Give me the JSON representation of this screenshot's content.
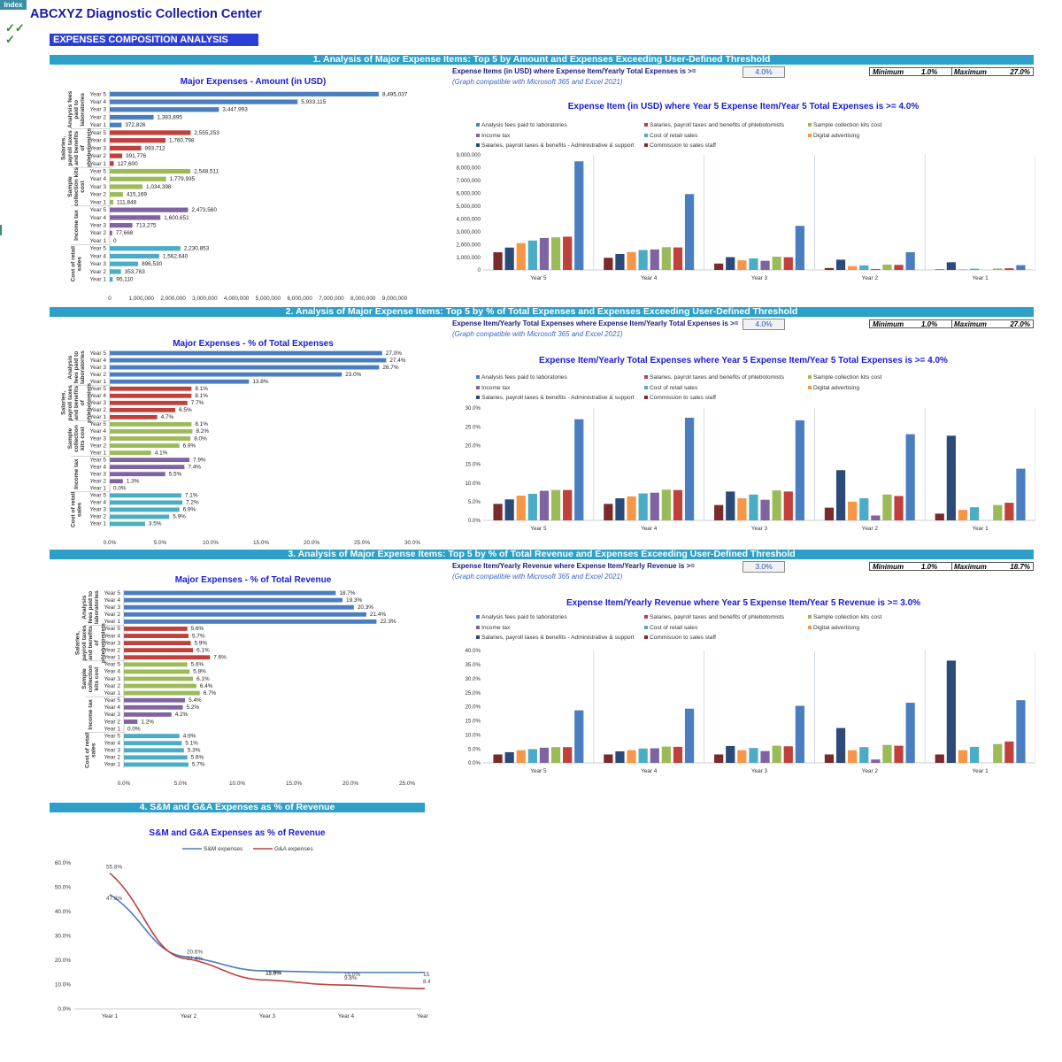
{
  "header": {
    "index_label": "Index",
    "company": "ABCXYZ Diagnostic Collection Center",
    "checks": [
      "✓✓",
      "✓"
    ],
    "analysis_title": "EXPENSES COMPOSITION ANALYSIS"
  },
  "years_desc": [
    "Year 5",
    "Year 4",
    "Year 3",
    "Year 2",
    "Year 1"
  ],
  "years_asc": [
    "Year 1",
    "Year 2",
    "Year 3",
    "Year 4",
    "Year 5"
  ],
  "colors": {
    "analysis": "#4a7ebf",
    "salaries_ph": "#c0403c",
    "kits": "#9bbb59",
    "income_tax": "#8064a2",
    "retail": "#4bacc6",
    "salaries_admin": "#2c4a78",
    "commission": "#7a2a2a",
    "digital": "#f79646",
    "section_bar": "#2da0c9"
  },
  "sections": [
    {
      "bar_title": "1. Analysis of Major Expense Items: Top 5 by Amount and Expenses Exceeding User-Defined Threshold",
      "threshold_label": "Expense Items (in USD) where Expense Item/Yearly Total Expenses is >=",
      "threshold_value": "4.0%",
      "compat": "(Graph compatible with Microsoft 365 and Excel 2021)",
      "min_label": "Minimum",
      "min_value": "1.0%",
      "max_label": "Maximum",
      "max_value": "27.0%",
      "hbar": {
        "title": "Major Expenses - Amount (in USD)",
        "xmax": 9000000,
        "xticks": [
          "0",
          "1,000,000",
          "2,000,000",
          "3,000,000",
          "4,000,000",
          "5,000,000",
          "6,000,000",
          "7,000,000",
          "8,000,000",
          "9,000,000"
        ],
        "groups": [
          {
            "name": "Analysis fees paid to laboratories",
            "color": "#4a7ebf",
            "values": [
              8495037,
              5933115,
              3447993,
              1383895,
              372826
            ],
            "labels": [
              "8,495,037",
              "5,933,115",
              "3,447,993",
              "1,383,895",
              "372,826"
            ]
          },
          {
            "name": "Salaries, payroll taxes and benefits of phlebotomists",
            "color": "#c0403c",
            "values": [
              2555253,
              1760798,
              993712,
              391776,
              127600
            ],
            "labels": [
              "2,555,253",
              "1,760,798",
              "993,712",
              "391,776",
              "127,600"
            ]
          },
          {
            "name": "Sample collection kits cost",
            "color": "#9bbb59",
            "values": [
              2548511,
              1779935,
              1034398,
              415169,
              111848
            ],
            "labels": [
              "2,548,511",
              "1,779,935",
              "1,034,398",
              "415,169",
              "111,848"
            ]
          },
          {
            "name": "Income tax",
            "color": "#8064a2",
            "values": [
              2473560,
              1600651,
              713275,
              77668,
              0
            ],
            "labels": [
              "2,473,560",
              "1,600,651",
              "713,275",
              "77,668",
              "0"
            ]
          },
          {
            "name": "Cost of retail sales",
            "color": "#4bacc6",
            "values": [
              2230853,
              1562640,
              896530,
              353763,
              95110
            ],
            "labels": [
              "2,230,853",
              "1,562,640",
              "896,530",
              "353,763",
              "95,110"
            ]
          }
        ],
        "group_labels": [
          [
            "Analysis fees",
            "paid to",
            "laboratories"
          ],
          [
            "Salaries,",
            "payroll taxes",
            "and benefits",
            "of",
            "phlebotomists"
          ],
          [
            "Sample",
            "collection kits",
            "cost"
          ],
          [
            "Income tax"
          ],
          [
            "Cost of retail",
            "sales"
          ]
        ]
      },
      "vbar": {
        "title": "Expense Item (in USD) where Year 5 Expense Item/Year 5 Total Expenses is >= 4.0%",
        "legend": [
          [
            "Analysis fees paid to laboratories",
            "#4a7ebf"
          ],
          [
            "Salaries, payroll taxes and benefits of phlebotomists",
            "#c0403c"
          ],
          [
            "Sample collection kits cost",
            "#9bbb59"
          ],
          [
            "Income tax",
            "#8064a2"
          ],
          [
            "Cost of retail sales",
            "#4bacc6"
          ],
          [
            "Digital advertising",
            "#f79646"
          ],
          [
            "Salaries, payroll taxes & benefits - Administrative & support",
            "#2c4a78"
          ],
          [
            "Commission to sales staff",
            "#7a2a2a"
          ]
        ],
        "ymax": 9000000,
        "yticks": [
          "0",
          "1,000,000",
          "2,000,000",
          "3,000,000",
          "4,000,000",
          "5,000,000",
          "6,000,000",
          "7,000,000",
          "8,000,000",
          "9,000,000"
        ],
        "bar_colors": [
          "#7a2a2a",
          "#2c4a78",
          "#f79646",
          "#4bacc6",
          "#8064a2",
          "#9bbb59",
          "#c0403c",
          "#4a7ebf"
        ],
        "groups": [
          {
            "label": "Year 5",
            "values": [
              1380000,
              1750000,
              2100000,
              2300000,
              2500000,
              2550000,
              2600000,
              8495037
            ]
          },
          {
            "label": "Year 4",
            "values": [
              950000,
              1250000,
              1400000,
              1560000,
              1600000,
              1780000,
              1760000,
              5933115
            ]
          },
          {
            "label": "Year 3",
            "values": [
              500000,
              1000000,
              750000,
              900000,
              713275,
              1034398,
              993712,
              3447993
            ]
          },
          {
            "label": "Year 2",
            "values": [
              150000,
              800000,
              300000,
              353763,
              77668,
              415169,
              391776,
              1383895
            ]
          },
          {
            "label": "Year 1",
            "values": [
              40000,
              600000,
              50000,
              95110,
              0,
              111848,
              127600,
              372826
            ]
          }
        ]
      }
    },
    {
      "bar_title": "2. Analysis of Major Expense Items: Top 5 by % of Total Expenses and Expenses Exceeding User-Defined Threshold",
      "threshold_label": "Expense Item/Yearly Total Expenses where Expense Item/Yearly Total Expenses is >=",
      "threshold_value": "4.0%",
      "compat": "(Graph compatible with Microsoft 365 and Excel 2021)",
      "min_label": "Minimum",
      "min_value": "1.0%",
      "max_label": "Maximum",
      "max_value": "27.0%",
      "hbar": {
        "title": "Major Expenses - % of Total Expenses",
        "xmax": 30,
        "xticks": [
          "0.0%",
          "5.0%",
          "10.0%",
          "15.0%",
          "20.0%",
          "25.0%",
          "30.0%"
        ],
        "groups": [
          {
            "name": "Analysis fees paid to laboratories",
            "color": "#4a7ebf",
            "values": [
              27.0,
              27.4,
              26.7,
              23.0,
              13.8
            ],
            "labels": [
              "27.0%",
              "27.4%",
              "26.7%",
              "23.0%",
              "13.8%"
            ]
          },
          {
            "name": "Salaries, payroll taxes and benefits of phlebotomists",
            "color": "#c0403c",
            "values": [
              8.1,
              8.1,
              7.7,
              6.5,
              4.7
            ],
            "labels": [
              "8.1%",
              "8.1%",
              "7.7%",
              "6.5%",
              "4.7%"
            ]
          },
          {
            "name": "Sample collection kits cost",
            "color": "#9bbb59",
            "values": [
              8.1,
              8.2,
              8.0,
              6.9,
              4.1
            ],
            "labels": [
              "8.1%",
              "8.2%",
              "8.0%",
              "6.9%",
              "4.1%"
            ]
          },
          {
            "name": "Income tax",
            "color": "#8064a2",
            "values": [
              7.9,
              7.4,
              5.5,
              1.3,
              0.0
            ],
            "labels": [
              "7.9%",
              "7.4%",
              "5.5%",
              "1.3%",
              "0.0%"
            ]
          },
          {
            "name": "Cost of retail sales",
            "color": "#4bacc6",
            "values": [
              7.1,
              7.2,
              6.9,
              5.9,
              3.5
            ],
            "labels": [
              "7.1%",
              "7.2%",
              "6.9%",
              "5.9%",
              "3.5%"
            ]
          }
        ],
        "group_labels": [
          [
            "Analysis",
            "fees paid to",
            "laboratories"
          ],
          [
            "Salaries,",
            "payroll taxes",
            "and benefits",
            "of",
            "phlebotomists"
          ],
          [
            "Sample",
            "collection",
            "kits cost"
          ],
          [
            "Income tax"
          ],
          [
            "Cost of retail",
            "sales"
          ]
        ]
      },
      "vbar": {
        "title": "Expense Item/Yearly Total Expenses where Year 5 Expense Item/Year 5 Total Expenses is >= 4.0%",
        "legend": [
          [
            "Analysis fees paid to laboratories",
            "#4a7ebf"
          ],
          [
            "Salaries, payroll taxes and benefits of phlebotomists",
            "#c0403c"
          ],
          [
            "Sample collection kits cost",
            "#9bbb59"
          ],
          [
            "Income tax",
            "#8064a2"
          ],
          [
            "Cost of retail sales",
            "#4bacc6"
          ],
          [
            "Digital advertising",
            "#f79646"
          ],
          [
            "Salaries, payroll taxes & benefits - Administrative & support",
            "#2c4a78"
          ],
          [
            "Commission to sales staff",
            "#7a2a2a"
          ]
        ],
        "ymax": 30,
        "yticks": [
          "0.0%",
          "5.0%",
          "10.0%",
          "15.0%",
          "20.0%",
          "25.0%",
          "30.0%"
        ],
        "bar_colors": [
          "#7a2a2a",
          "#2c4a78",
          "#f79646",
          "#4bacc6",
          "#8064a2",
          "#9bbb59",
          "#c0403c",
          "#4a7ebf"
        ],
        "groups": [
          {
            "label": "Year 5",
            "values": [
              4.4,
              5.6,
              6.6,
              7.1,
              7.9,
              8.1,
              8.1,
              27.0
            ]
          },
          {
            "label": "Year 4",
            "values": [
              4.4,
              5.9,
              6.4,
              7.2,
              7.4,
              8.2,
              8.1,
              27.4
            ]
          },
          {
            "label": "Year 3",
            "values": [
              4.1,
              7.7,
              5.9,
              6.9,
              5.5,
              8.0,
              7.7,
              26.7
            ]
          },
          {
            "label": "Year 2",
            "values": [
              3.4,
              13.4,
              5.0,
              5.9,
              1.3,
              6.9,
              6.5,
              23.0
            ]
          },
          {
            "label": "Year 1",
            "values": [
              1.8,
              22.6,
              2.8,
              3.5,
              0.0,
              4.1,
              4.7,
              13.8
            ]
          }
        ]
      }
    },
    {
      "bar_title": "3. Analysis of Major Expense Items: Top 5 by % of Total Revenue and Expenses Exceeding User-Defined Threshold",
      "threshold_label": "Expense Item/Yearly Revenue where Expense Item/Yearly Revenue is >=",
      "threshold_value": "3.0%",
      "compat": "(Graph compatible with Microsoft 365 and Excel 2021)",
      "min_label": "Minimum",
      "min_value": "1.0%",
      "max_label": "Maximum",
      "max_value": "18.7%",
      "hbar": {
        "title": "Major Expenses - % of Total Revenue",
        "xmax": 25,
        "xticks": [
          "0.0%",
          "5.0%",
          "10.0%",
          "15.0%",
          "20.0%",
          "25.0%"
        ],
        "groups": [
          {
            "name": "Analysis fees paid to laboratories",
            "color": "#4a7ebf",
            "values": [
              18.7,
              19.3,
              20.3,
              21.4,
              22.3
            ],
            "labels": [
              "18.7%",
              "19.3%",
              "20.3%",
              "21.4%",
              "22.3%"
            ]
          },
          {
            "name": "Salaries, payroll taxes and benefits of phlebotomists",
            "color": "#c0403c",
            "values": [
              5.6,
              5.7,
              5.9,
              6.1,
              7.6
            ],
            "labels": [
              "5.6%",
              "5.7%",
              "5.9%",
              "6.1%",
              "7.6%"
            ]
          },
          {
            "name": "Sample collection kits cost",
            "color": "#9bbb59",
            "values": [
              5.6,
              5.8,
              6.1,
              6.4,
              6.7
            ],
            "labels": [
              "5.6%",
              "5.8%",
              "6.1%",
              "6.4%",
              "6.7%"
            ]
          },
          {
            "name": "Income tax",
            "color": "#8064a2",
            "values": [
              5.4,
              5.2,
              4.2,
              1.2,
              0.0
            ],
            "labels": [
              "5.4%",
              "5.2%",
              "4.2%",
              "1.2%",
              "0.0%"
            ]
          },
          {
            "name": "Cost of retail sales",
            "color": "#4bacc6",
            "values": [
              4.9,
              5.1,
              5.3,
              5.6,
              5.7
            ],
            "labels": [
              "4.9%",
              "5.1%",
              "5.3%",
              "5.6%",
              "5.7%"
            ]
          }
        ],
        "group_labels": [
          [
            "Analysis",
            "fees paid to",
            "laboratories"
          ],
          [
            "Salaries,",
            "payroll taxes",
            "and benefits",
            "of",
            "phlebotomists"
          ],
          [
            "Sample",
            "collection",
            "kits cost"
          ],
          [
            "Income tax"
          ],
          [
            "Cost of retail",
            "sales"
          ]
        ]
      },
      "vbar": {
        "title": "Expense Item/Yearly Revenue where Year 5 Expense Item/Year 5 Revenue is >= 3.0%",
        "legend": [
          [
            "Analysis fees paid to laboratories",
            "#4a7ebf"
          ],
          [
            "Salaries, payroll taxes and benefits of phlebotomists",
            "#c0403c"
          ],
          [
            "Sample collection kits cost",
            "#9bbb59"
          ],
          [
            "Income tax",
            "#8064a2"
          ],
          [
            "Cost of retail sales",
            "#4bacc6"
          ],
          [
            "Digital advertising",
            "#f79646"
          ],
          [
            "Salaries, payroll taxes & benefits - Administrative & support",
            "#2c4a78"
          ],
          [
            "Commission to sales staff",
            "#7a2a2a"
          ]
        ],
        "ymax": 40,
        "yticks": [
          "0.0%",
          "5.0%",
          "10.0%",
          "15.0%",
          "20.0%",
          "25.0%",
          "30.0%",
          "35.0%",
          "40.0%"
        ],
        "bar_colors": [
          "#7a2a2a",
          "#2c4a78",
          "#f79646",
          "#4bacc6",
          "#8064a2",
          "#9bbb59",
          "#c0403c",
          "#4a7ebf"
        ],
        "groups": [
          {
            "label": "Year 5",
            "values": [
              3.0,
              3.8,
              4.5,
              4.9,
              5.4,
              5.6,
              5.6,
              18.7
            ]
          },
          {
            "label": "Year 4",
            "values": [
              3.0,
              4.1,
              4.5,
              5.1,
              5.2,
              5.8,
              5.7,
              19.3
            ]
          },
          {
            "label": "Year 3",
            "values": [
              3.0,
              6.0,
              4.5,
              5.3,
              4.2,
              6.1,
              5.9,
              20.3
            ]
          },
          {
            "label": "Year 2",
            "values": [
              3.0,
              12.4,
              4.5,
              5.6,
              1.2,
              6.4,
              6.1,
              21.4
            ]
          },
          {
            "label": "Year 1",
            "values": [
              3.0,
              36.4,
              4.5,
              5.7,
              0.0,
              6.7,
              7.6,
              22.3
            ]
          }
        ]
      }
    }
  ],
  "section4": {
    "bar_title": "4. S&M and G&A Expenses as % of Revenue",
    "chart_title": "S&M and G&A Expenses as % of Revenue",
    "legend": [
      "S&M expenses",
      "G&A expenses"
    ]
  },
  "chart_data": {
    "type": "line",
    "title": "S&M and G&A Expenses as % of Revenue",
    "x": [
      "Year 1",
      "Year 2",
      "Year 3",
      "Year 4",
      "Year 5"
    ],
    "ylim": [
      0,
      60
    ],
    "yticks": [
      "0.0%",
      "10.0%",
      "20.0%",
      "30.0%",
      "40.0%",
      "50.0%",
      "60.0%"
    ],
    "series": [
      {
        "name": "S&M expenses",
        "color": "#4a7ebf",
        "values": [
          47.0,
          21.4,
          15.6,
          15.0,
          15.0
        ],
        "labels": [
          "47.0%",
          "21.4%",
          "15.6%",
          "15.0%",
          "15.0%"
        ]
      },
      {
        "name": "G&A expenses",
        "color": "#c0403c",
        "values": [
          55.8,
          20.6,
          11.9,
          9.8,
          8.4
        ],
        "labels": [
          "55.8%",
          "20.6%",
          "11.9%",
          "9.8%",
          "8.4%"
        ]
      }
    ]
  }
}
